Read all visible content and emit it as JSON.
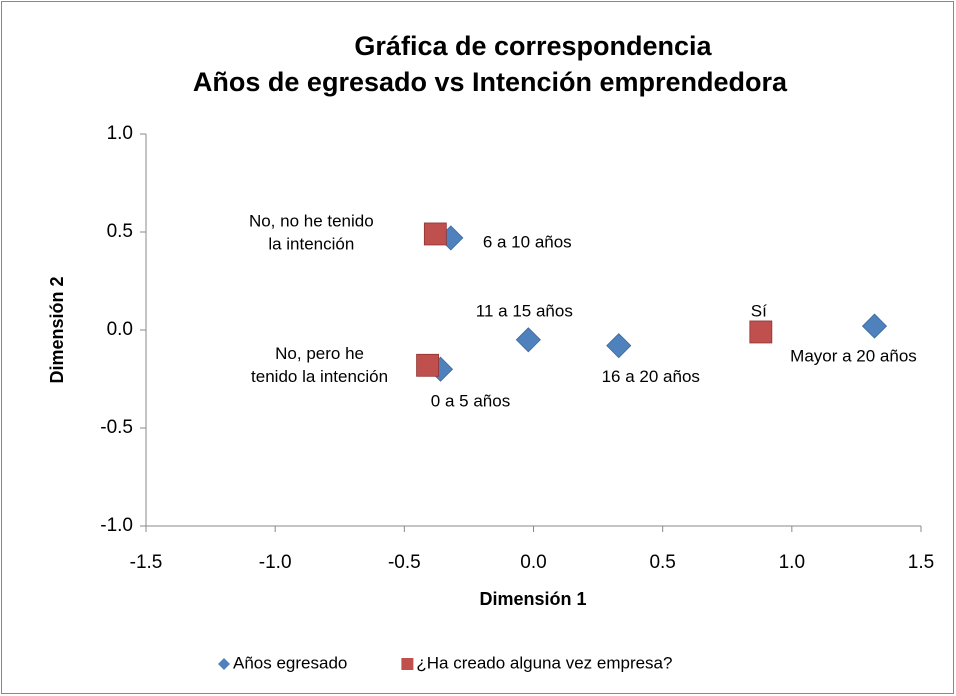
{
  "chart_data": {
    "type": "scatter",
    "title": [
      "Gráfica de correspondencia",
      "Años de egresado vs Intención emprendedora"
    ],
    "xlabel": "Dimensión 1",
    "ylabel": "Dimensión 2",
    "xlim": [
      -1.5,
      1.5
    ],
    "ylim": [
      -1.0,
      1.0
    ],
    "xticks": [
      {
        "value": -1.5,
        "label": "-1.5"
      },
      {
        "value": -1.0,
        "label": "-1.0"
      },
      {
        "value": -0.5,
        "label": "-0.5"
      },
      {
        "value": 0,
        "label": "0.0"
      },
      {
        "value": 0.5,
        "label": "0.5"
      },
      {
        "value": 1.0,
        "label": "1.0"
      },
      {
        "value": 1.5,
        "label": "1.5"
      }
    ],
    "yticks": [
      {
        "value": -1.0,
        "label": "-1.0"
      },
      {
        "value": -0.5,
        "label": "-0.5"
      },
      {
        "value": 0,
        "label": "0.0"
      },
      {
        "value": 0.5,
        "label": "0.5"
      },
      {
        "value": 1.0,
        "label": "1.0"
      }
    ],
    "grid": false,
    "legend": "bottom",
    "series": [
      {
        "name": "Años egresado",
        "color": "#4f81bd",
        "marker": "diamond",
        "x": [
          -0.36,
          -0.32,
          -0.02,
          0.33,
          1.32
        ],
        "values": [
          -0.2,
          0.47,
          -0.05,
          -0.08,
          0.02
        ],
        "labels": [
          [
            "0 a 5 años"
          ],
          [
            "6 a 10 años"
          ],
          [
            "11 a 15 años"
          ],
          [
            "16 a 20 años"
          ],
          [
            "Mayor a 20 años"
          ]
        ]
      },
      {
        "name": "¿Ha creado alguna vez empresa?",
        "color": "#c0504d",
        "marker": "square",
        "x": [
          -0.38,
          -0.41,
          0.88
        ],
        "values": [
          0.49,
          -0.18,
          -0.01
        ],
        "labels": [
          [
            "No, no he tenido",
            "la intención"
          ],
          [
            "No, pero he",
            "tenido la intención"
          ],
          [
            "Sí"
          ]
        ]
      }
    ]
  }
}
